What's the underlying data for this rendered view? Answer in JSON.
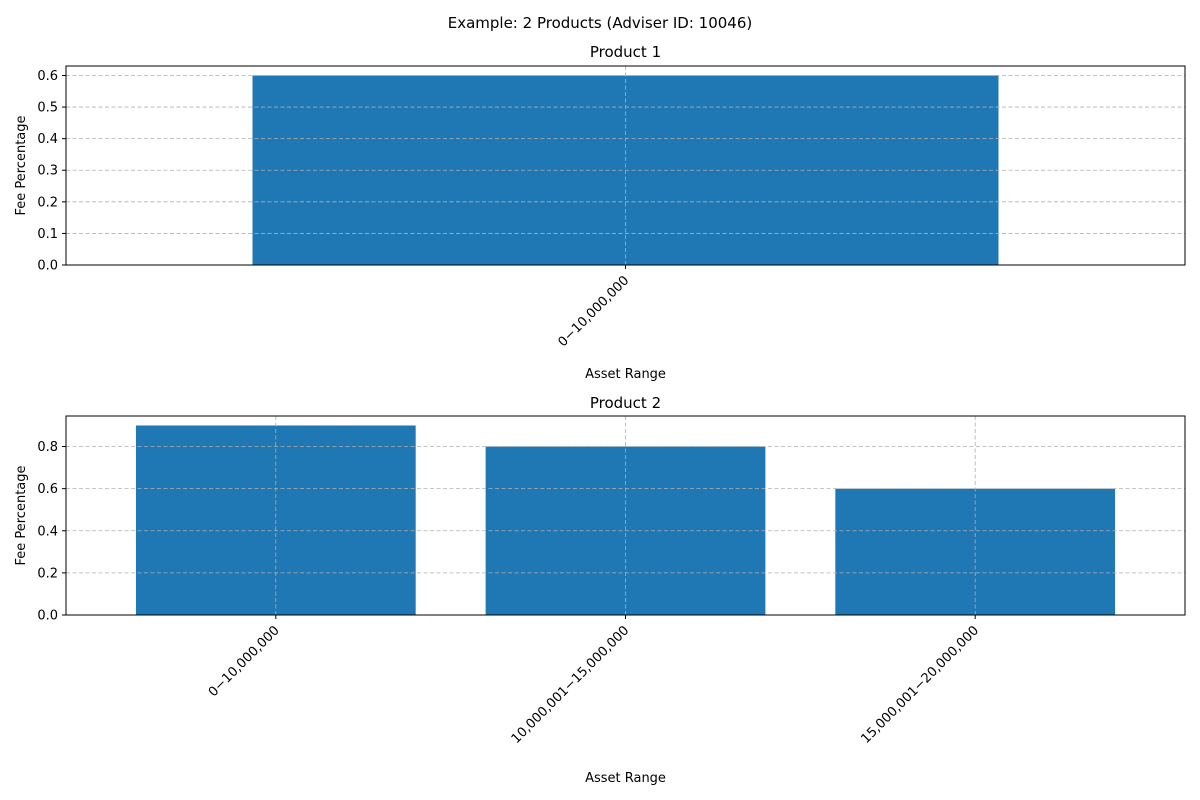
{
  "figure": {
    "title": "Example: 2 Products (Adviser ID: 10046)"
  },
  "colors": {
    "bar": "#1f77b4",
    "background": "#ffffff",
    "grid": "#b0b0b0"
  },
  "chart_data": [
    {
      "type": "bar",
      "title": "Product 1",
      "xlabel": "Asset Range",
      "ylabel": "Fee Percentage",
      "categories": [
        "$0 - $10,000,000"
      ],
      "category_labels": [
        "0−10,000,000"
      ],
      "values": [
        0.6
      ],
      "ylim": [
        0,
        0.63
      ],
      "yticks": [
        "0.0",
        "0.1",
        "0.2",
        "0.3",
        "0.4",
        "0.5",
        "0.6"
      ],
      "ytick_values": [
        0,
        0.1,
        0.2,
        0.3,
        0.4,
        0.5,
        0.6
      ],
      "grid": true,
      "xtick_rotation": 45
    },
    {
      "type": "bar",
      "title": "Product 2",
      "xlabel": "Asset Range",
      "ylabel": "Fee Percentage",
      "categories": [
        "$0 - $10,000,000",
        "$10,000,001 - $15,000,000",
        "$15,000,001 - $20,000,000"
      ],
      "category_labels": [
        "0−10,000,000",
        "10,000,001−15,000,000",
        "15,000,001−20,000,000"
      ],
      "values": [
        0.9,
        0.8,
        0.6
      ],
      "ylim": [
        0,
        0.945
      ],
      "yticks": [
        "0.0",
        "0.2",
        "0.4",
        "0.6",
        "0.8"
      ],
      "ytick_values": [
        0,
        0.2,
        0.4,
        0.6,
        0.8
      ],
      "grid": true,
      "xtick_rotation": 45
    }
  ]
}
